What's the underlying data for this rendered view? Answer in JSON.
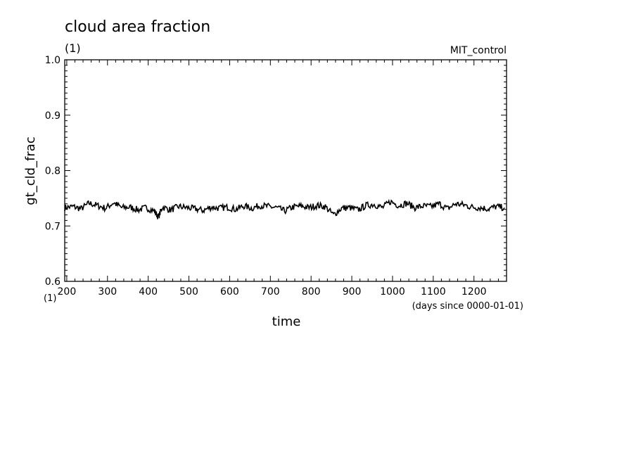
{
  "header": {
    "title": "cloud area fraction",
    "title_units": "(1)",
    "experiment": "MIT_control"
  },
  "chart_data": {
    "type": "line",
    "title": "cloud area fraction",
    "xlabel": "time",
    "x_units": "(days since 0000-01-01)",
    "ylabel": "gt_cld_frac",
    "y_units": "(1)",
    "xlim": [
      195,
      1280
    ],
    "ylim": [
      0.6,
      1.0
    ],
    "x_ticks": [
      200,
      300,
      400,
      500,
      600,
      700,
      800,
      900,
      1000,
      1100,
      1200
    ],
    "x_tick_labels": [
      "200",
      "300",
      "400",
      "500",
      "600",
      "700",
      "800",
      "900",
      "1000",
      "1100",
      "1200"
    ],
    "y_ticks": [
      0.6,
      0.7,
      0.8,
      0.9,
      1.0
    ],
    "y_tick_labels": [
      "0.6",
      "0.7",
      "0.8",
      "0.9",
      "1.0"
    ],
    "grid": false,
    "series": [
      {
        "color": "#000000",
        "x": [
          195,
          215,
          235,
          255,
          275,
          295,
          315,
          335,
          355,
          375,
          395,
          415,
          425,
          435,
          455,
          475,
          495,
          515,
          535,
          555,
          575,
          595,
          615,
          635,
          655,
          675,
          695,
          715,
          735,
          755,
          775,
          795,
          815,
          835,
          855,
          875,
          895,
          915,
          935,
          955,
          975,
          995,
          1015,
          1035,
          1055,
          1075,
          1095,
          1115,
          1135,
          1155,
          1175,
          1195,
          1215,
          1235,
          1255,
          1275
        ],
        "y": [
          0.733,
          0.735,
          0.731,
          0.741,
          0.737,
          0.732,
          0.742,
          0.733,
          0.734,
          0.729,
          0.733,
          0.727,
          0.716,
          0.734,
          0.729,
          0.735,
          0.733,
          0.731,
          0.728,
          0.734,
          0.732,
          0.734,
          0.73,
          0.736,
          0.732,
          0.737,
          0.735,
          0.733,
          0.727,
          0.734,
          0.736,
          0.733,
          0.737,
          0.735,
          0.72,
          0.732,
          0.733,
          0.729,
          0.737,
          0.739,
          0.733,
          0.744,
          0.737,
          0.741,
          0.733,
          0.736,
          0.735,
          0.74,
          0.731,
          0.74,
          0.738,
          0.734,
          0.733,
          0.731,
          0.735,
          0.733
        ]
      }
    ]
  }
}
